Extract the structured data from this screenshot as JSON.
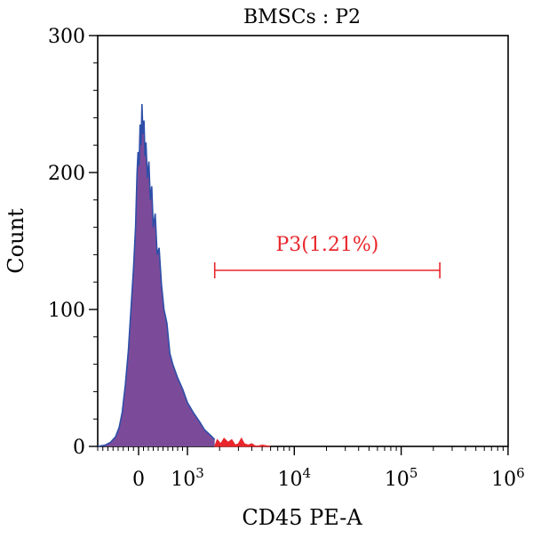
{
  "chart_data": {
    "type": "area",
    "title": "BMSCs : P2",
    "xlabel": "CD45 PE-A",
    "ylabel": "Count",
    "x_scale": "biexponential",
    "ylim": [
      0,
      300
    ],
    "y_ticks": [
      {
        "value": 0,
        "label": "0"
      },
      {
        "value": 100,
        "label": "100"
      },
      {
        "value": 200,
        "label": "200"
      },
      {
        "value": 300,
        "label": "300"
      }
    ],
    "x_ticks": [
      {
        "value": 0,
        "label": "0",
        "exp": ""
      },
      {
        "value": 1000,
        "label": "10",
        "exp": "3"
      },
      {
        "value": 10000,
        "label": "10",
        "exp": "4"
      },
      {
        "value": 100000,
        "label": "10",
        "exp": "5"
      },
      {
        "value": 1000000,
        "label": "10",
        "exp": "6"
      }
    ],
    "grid": false,
    "gate": {
      "name": "P3(1.21%)",
      "x_start": 1800,
      "x_end": 230000
    },
    "colors": {
      "fill": "#7B4B99",
      "outline": "#2E4FA8",
      "gated": "#E8262B",
      "axis": "#000000"
    },
    "series": [
      {
        "values": [
          [
            -800,
            0
          ],
          [
            -650,
            1
          ],
          [
            -550,
            3
          ],
          [
            -450,
            7
          ],
          [
            -380,
            14
          ],
          [
            -320,
            25
          ],
          [
            -260,
            45
          ],
          [
            -200,
            70
          ],
          [
            -150,
            100
          ],
          [
            -100,
            130
          ],
          [
            -60,
            160
          ],
          [
            -30,
            200
          ],
          [
            -10,
            215
          ],
          [
            10,
            205
          ],
          [
            30,
            235
          ],
          [
            50,
            220
          ],
          [
            70,
            250
          ],
          [
            90,
            228
          ],
          [
            110,
            238
          ],
          [
            130,
            212
          ],
          [
            150,
            222
          ],
          [
            180,
            196
          ],
          [
            210,
            208
          ],
          [
            240,
            180
          ],
          [
            270,
            190
          ],
          [
            300,
            160
          ],
          [
            340,
            170
          ],
          [
            380,
            140
          ],
          [
            420,
            145
          ],
          [
            470,
            118
          ],
          [
            520,
            100
          ],
          [
            580,
            90
          ],
          [
            640,
            68
          ],
          [
            700,
            60
          ],
          [
            800,
            50
          ],
          [
            900,
            42
          ],
          [
            1000,
            32
          ],
          [
            1150,
            24
          ],
          [
            1300,
            18
          ],
          [
            1450,
            12
          ],
          [
            1650,
            8
          ],
          [
            1800,
            5
          ]
        ]
      },
      {
        "values": [
          [
            1800,
            0
          ],
          [
            1900,
            5
          ],
          [
            2050,
            2
          ],
          [
            2200,
            6
          ],
          [
            2400,
            3
          ],
          [
            2600,
            5
          ],
          [
            2800,
            1
          ],
          [
            3000,
            2
          ],
          [
            3200,
            6
          ],
          [
            3400,
            2
          ],
          [
            3700,
            1
          ],
          [
            4000,
            2
          ],
          [
            4400,
            0
          ],
          [
            5000,
            1
          ],
          [
            6000,
            0
          ]
        ]
      }
    ]
  }
}
